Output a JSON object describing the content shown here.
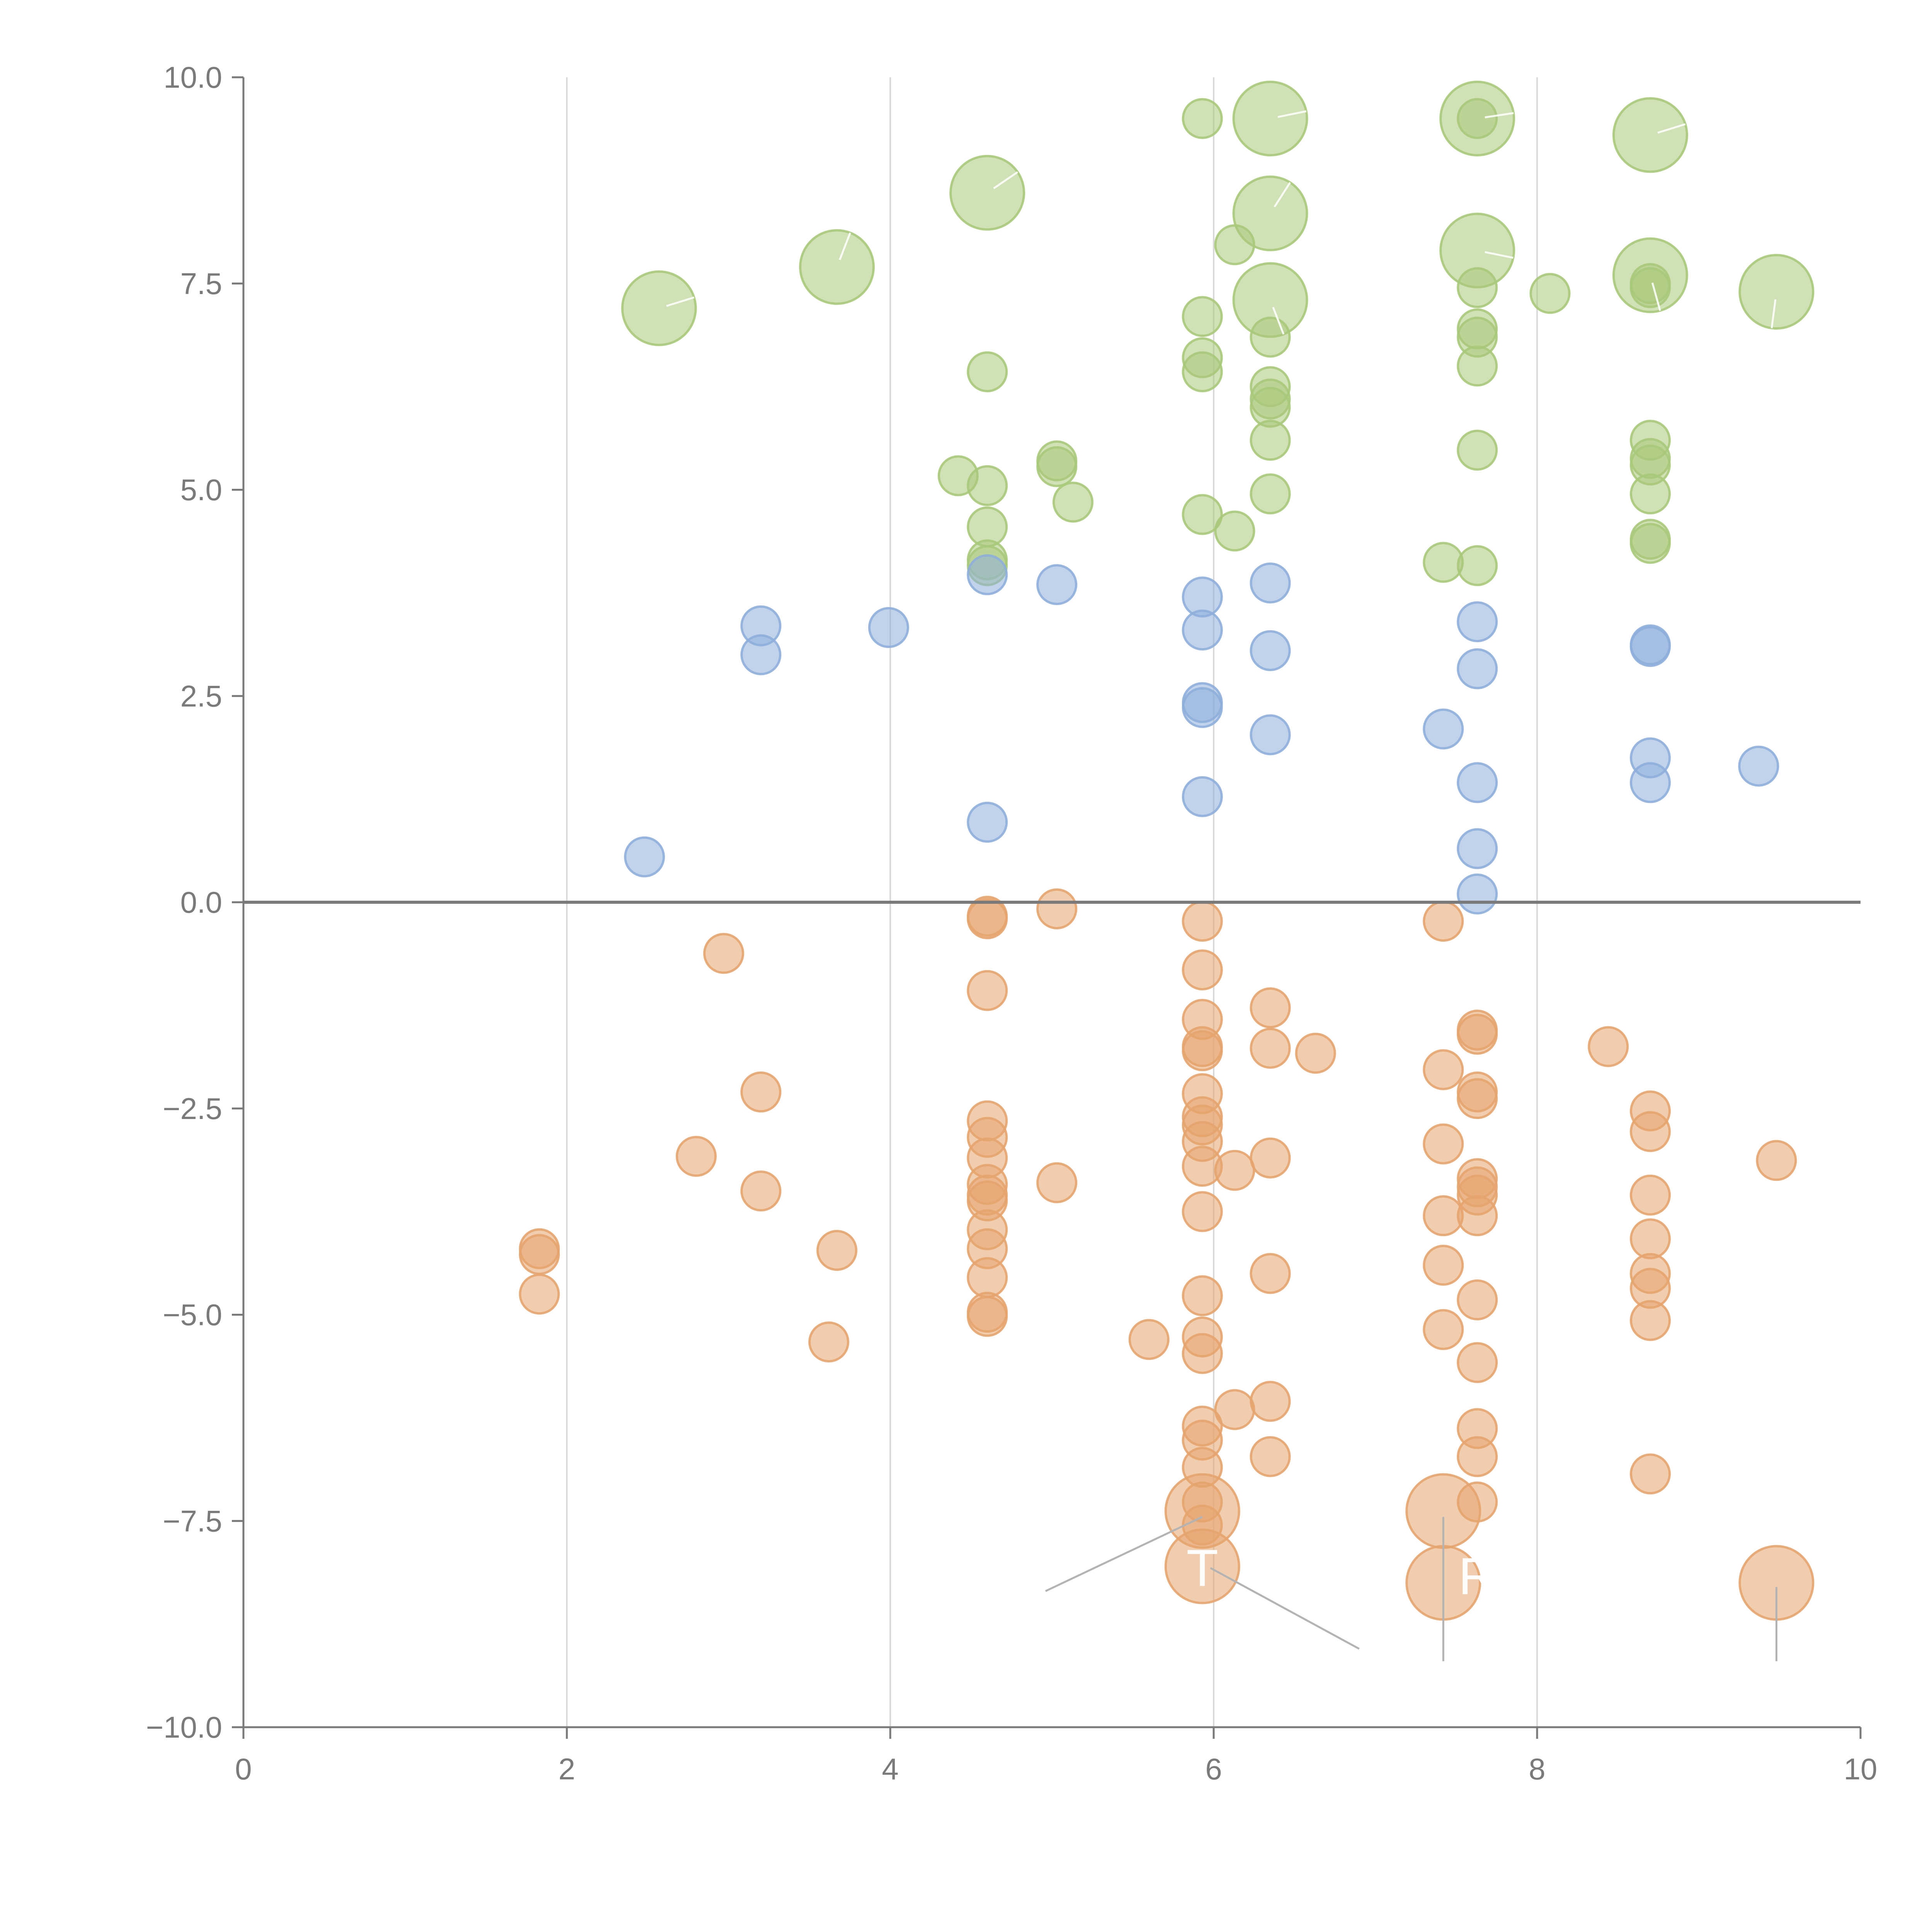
{
  "chart_data": {
    "type": "scatter",
    "title": "",
    "xlabel": "",
    "ylabel": "",
    "xlim": [
      0,
      10
    ],
    "ylim": [
      -10,
      10
    ],
    "x_ticks": [
      0,
      2,
      4,
      6,
      8,
      10
    ],
    "x_tick_labels": [
      "0",
      "2",
      "4",
      "6",
      "8",
      "10"
    ],
    "y_ticks": [
      -10,
      -7.5,
      -5,
      -2.5,
      0,
      2.5,
      5,
      7.5,
      10
    ],
    "y_tick_labels": [
      "−10.0",
      "−7.5",
      "−5.0",
      "−2.5",
      "0.0",
      "2.5",
      "5.0",
      "7.5",
      "10.0"
    ],
    "vertical_gridlines_at": [
      2,
      4,
      6,
      8
    ],
    "zero_line": 0,
    "series": [
      {
        "name": "green",
        "color": "#a9c97a",
        "points": [
          [
            2.57,
            7.2,
            2
          ],
          [
            3.67,
            7.7,
            2
          ],
          [
            4.6,
            8.6,
            2
          ],
          [
            6.35,
            9.5,
            2
          ],
          [
            7.63,
            9.5,
            2
          ],
          [
            8.7,
            9.3,
            2
          ],
          [
            6.35,
            8.35,
            2
          ],
          [
            7.63,
            7.9,
            2
          ],
          [
            6.35,
            7.3,
            2
          ],
          [
            8.7,
            7.6,
            2
          ],
          [
            9.48,
            7.4,
            2
          ],
          [
            5.93,
            9.5,
            1
          ],
          [
            7.63,
            9.5,
            1
          ],
          [
            6.13,
            7.97,
            1
          ],
          [
            5.93,
            7.1,
            1
          ],
          [
            7.63,
            7.45,
            1
          ],
          [
            8.08,
            7.38,
            1
          ],
          [
            8.7,
            7.5,
            1
          ],
          [
            8.7,
            7.45,
            1
          ],
          [
            7.63,
            6.95,
            1
          ],
          [
            7.63,
            6.85,
            1
          ],
          [
            6.35,
            6.85,
            1
          ],
          [
            7.63,
            6.5,
            1
          ],
          [
            4.6,
            6.43,
            1
          ],
          [
            5.93,
            6.6,
            1
          ],
          [
            5.93,
            6.43,
            1
          ],
          [
            6.35,
            6.25,
            1
          ],
          [
            6.35,
            6.1,
            1
          ],
          [
            6.35,
            6.0,
            1
          ],
          [
            6.35,
            5.6,
            1
          ],
          [
            8.7,
            5.6,
            1
          ],
          [
            7.63,
            5.48,
            1
          ],
          [
            8.7,
            5.38,
            1
          ],
          [
            8.7,
            5.3,
            1
          ],
          [
            5.03,
            5.35,
            1
          ],
          [
            5.03,
            5.28,
            1
          ],
          [
            4.42,
            5.17,
            1
          ],
          [
            4.6,
            5.05,
            1
          ],
          [
            5.13,
            4.85,
            1
          ],
          [
            6.35,
            4.95,
            1
          ],
          [
            8.7,
            4.95,
            1
          ],
          [
            5.93,
            4.7,
            1
          ],
          [
            4.6,
            4.55,
            1
          ],
          [
            6.13,
            4.5,
            1
          ],
          [
            8.7,
            4.4,
            1
          ],
          [
            8.7,
            4.35,
            1
          ],
          [
            7.42,
            4.12,
            1
          ],
          [
            7.63,
            4.08,
            1
          ],
          [
            4.6,
            4.15,
            1
          ],
          [
            4.6,
            4.08,
            1
          ]
        ]
      },
      {
        "name": "blue",
        "color": "#8eaedb",
        "points": [
          [
            4.6,
            3.97,
            1
          ],
          [
            5.03,
            3.85,
            1
          ],
          [
            6.35,
            3.87,
            1
          ],
          [
            5.93,
            3.7,
            1
          ],
          [
            3.2,
            3.35,
            1
          ],
          [
            3.99,
            3.33,
            1
          ],
          [
            5.93,
            3.3,
            1
          ],
          [
            7.63,
            3.4,
            1
          ],
          [
            3.2,
            3.0,
            1
          ],
          [
            6.35,
            3.05,
            1
          ],
          [
            8.7,
            3.12,
            1
          ],
          [
            8.7,
            3.1,
            1
          ],
          [
            7.63,
            2.83,
            1
          ],
          [
            5.93,
            2.42,
            1
          ],
          [
            5.93,
            2.36,
            1
          ],
          [
            7.42,
            2.1,
            1
          ],
          [
            6.35,
            2.03,
            1
          ],
          [
            8.7,
            1.75,
            1
          ],
          [
            9.37,
            1.65,
            1
          ],
          [
            7.63,
            1.45,
            1
          ],
          [
            8.7,
            1.45,
            1
          ],
          [
            5.93,
            1.28,
            1
          ],
          [
            4.6,
            0.97,
            1
          ],
          [
            7.63,
            0.65,
            1
          ],
          [
            2.48,
            0.55,
            1
          ],
          [
            7.63,
            0.1,
            1
          ]
        ]
      },
      {
        "name": "orange",
        "color": "#e6a46e",
        "points": [
          [
            5.03,
            -0.08,
            1
          ],
          [
            4.6,
            -0.17,
            1
          ],
          [
            4.6,
            -0.2,
            1
          ],
          [
            5.93,
            -0.23,
            1
          ],
          [
            7.42,
            -0.23,
            1
          ],
          [
            2.97,
            -0.62,
            1
          ],
          [
            5.93,
            -0.82,
            1
          ],
          [
            4.6,
            -1.07,
            1
          ],
          [
            6.35,
            -1.28,
            1
          ],
          [
            7.63,
            -1.55,
            1
          ],
          [
            7.63,
            -1.6,
            1
          ],
          [
            5.93,
            -1.42,
            1
          ],
          [
            5.93,
            -1.75,
            1
          ],
          [
            5.93,
            -1.8,
            1
          ],
          [
            6.35,
            -1.77,
            1
          ],
          [
            6.63,
            -1.83,
            1
          ],
          [
            8.44,
            -1.75,
            1
          ],
          [
            7.42,
            -2.03,
            1
          ],
          [
            3.2,
            -2.3,
            1
          ],
          [
            5.93,
            -2.32,
            1
          ],
          [
            7.63,
            -2.3,
            1
          ],
          [
            7.63,
            -2.38,
            1
          ],
          [
            8.7,
            -2.53,
            1
          ],
          [
            4.6,
            -2.65,
            1
          ],
          [
            5.93,
            -2.6,
            1
          ],
          [
            5.93,
            -2.7,
            1
          ],
          [
            8.7,
            -2.78,
            1
          ],
          [
            4.6,
            -2.85,
            1
          ],
          [
            5.93,
            -2.9,
            1
          ],
          [
            7.42,
            -2.93,
            1
          ],
          [
            2.8,
            -3.08,
            1
          ],
          [
            4.6,
            -3.1,
            1
          ],
          [
            6.35,
            -3.1,
            1
          ],
          [
            9.48,
            -3.13,
            1
          ],
          [
            5.93,
            -3.2,
            1
          ],
          [
            6.13,
            -3.25,
            1
          ],
          [
            5.03,
            -3.4,
            1
          ],
          [
            3.2,
            -3.5,
            1
          ],
          [
            4.6,
            -3.42,
            1
          ],
          [
            4.6,
            -3.55,
            1
          ],
          [
            4.6,
            -3.62,
            1
          ],
          [
            7.63,
            -3.35,
            1
          ],
          [
            7.63,
            -3.45,
            1
          ],
          [
            7.63,
            -3.55,
            1
          ],
          [
            8.7,
            -3.55,
            1
          ],
          [
            5.93,
            -3.75,
            1
          ],
          [
            7.42,
            -3.8,
            1
          ],
          [
            7.63,
            -3.8,
            1
          ],
          [
            4.6,
            -3.97,
            1
          ],
          [
            8.7,
            -4.08,
            1
          ],
          [
            4.6,
            -4.2,
            1
          ],
          [
            3.67,
            -4.22,
            1
          ],
          [
            1.83,
            -4.2,
            1
          ],
          [
            1.83,
            -4.27,
            1
          ],
          [
            7.42,
            -4.4,
            1
          ],
          [
            6.35,
            -4.5,
            1
          ],
          [
            8.7,
            -4.5,
            1
          ],
          [
            4.6,
            -4.55,
            1
          ],
          [
            8.7,
            -4.68,
            1
          ],
          [
            1.83,
            -4.75,
            1
          ],
          [
            5.93,
            -4.77,
            1
          ],
          [
            7.63,
            -4.82,
            1
          ],
          [
            4.6,
            -4.97,
            1
          ],
          [
            4.6,
            -5.02,
            1
          ],
          [
            8.7,
            -5.07,
            1
          ],
          [
            7.42,
            -5.18,
            1
          ],
          [
            5.93,
            -5.27,
            1
          ],
          [
            5.6,
            -5.3,
            1
          ],
          [
            3.62,
            -5.33,
            1
          ],
          [
            5.93,
            -5.47,
            1
          ],
          [
            7.63,
            -5.58,
            1
          ],
          [
            6.35,
            -6.05,
            1
          ],
          [
            6.13,
            -6.15,
            1
          ],
          [
            5.93,
            -6.35,
            1
          ],
          [
            7.63,
            -6.38,
            1
          ],
          [
            5.93,
            -6.52,
            1
          ],
          [
            6.35,
            -6.72,
            1
          ],
          [
            7.63,
            -6.72,
            1
          ],
          [
            5.93,
            -6.85,
            1
          ],
          [
            8.7,
            -6.93,
            1
          ],
          [
            5.93,
            -7.27,
            1
          ],
          [
            7.63,
            -7.27,
            1
          ],
          [
            5.93,
            -7.55,
            1
          ],
          [
            5.93,
            -7.38,
            2
          ],
          [
            7.42,
            -7.38,
            2
          ],
          [
            5.93,
            -8.05,
            2
          ],
          [
            7.42,
            -8.25,
            2
          ],
          [
            9.48,
            -8.25,
            2
          ]
        ]
      }
    ],
    "annotations": [
      {
        "text": "T",
        "x": 5.93,
        "y": -8.1
      },
      {
        "text": "R",
        "x": 7.63,
        "y": -8.2
      }
    ]
  }
}
